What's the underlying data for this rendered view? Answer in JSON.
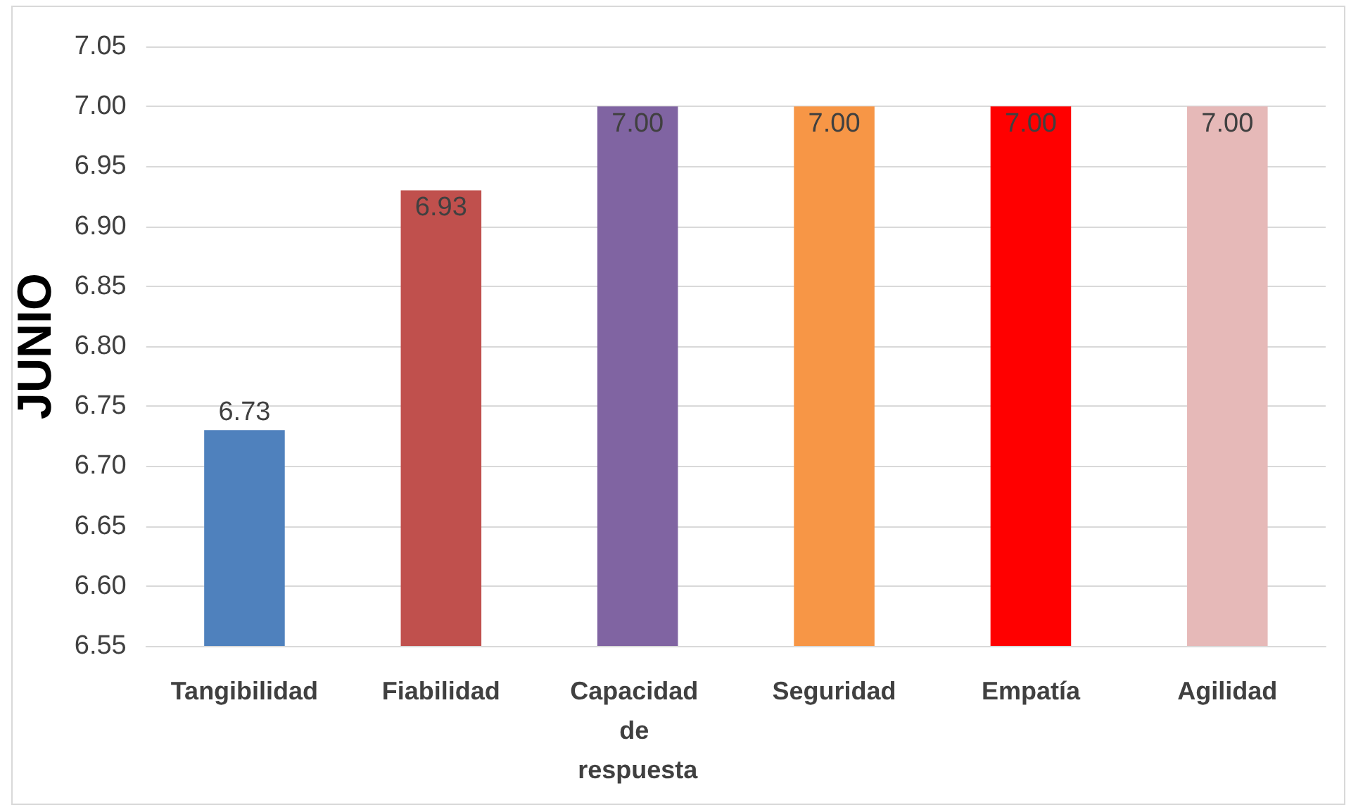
{
  "chart_data": {
    "type": "bar",
    "ylabel": "JUNIO",
    "categories": [
      "Tangibilidad",
      "Fiabilidad",
      "Capacidad de respuesta",
      "Seguridad",
      "Empatía",
      "Agilidad"
    ],
    "values": [
      6.73,
      6.93,
      7.0,
      7.0,
      7.0,
      7.0
    ],
    "value_labels": [
      "6.73",
      "6.93",
      "7.00",
      "7.00",
      "7.00",
      "7.00"
    ],
    "colors": [
      "#4f81bd",
      "#c0504d",
      "#8064a2",
      "#f79646",
      "#ff0000",
      "#e6b9b8"
    ],
    "ylim": [
      6.55,
      7.05
    ],
    "yticks": [
      {
        "value": 6.55,
        "label": "6.55"
      },
      {
        "value": 6.6,
        "label": "6.60"
      },
      {
        "value": 6.65,
        "label": "6.65"
      },
      {
        "value": 6.7,
        "label": "6.70"
      },
      {
        "value": 6.75,
        "label": "6.75"
      },
      {
        "value": 6.8,
        "label": "6.80"
      },
      {
        "value": 6.85,
        "label": "6.85"
      },
      {
        "value": 6.9,
        "label": "6.90"
      },
      {
        "value": 6.95,
        "label": "6.95"
      },
      {
        "value": 7.0,
        "label": "7.00"
      },
      {
        "value": 7.05,
        "label": "7.05"
      }
    ],
    "grid": "y"
  }
}
